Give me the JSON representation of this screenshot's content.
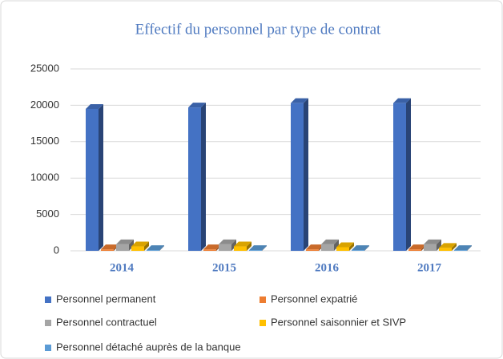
{
  "chart_data": {
    "type": "bar",
    "title": "Effectif du personnel par type de contrat",
    "categories": [
      "2014",
      "2015",
      "2016",
      "2017"
    ],
    "series": [
      {
        "name": "Personnel permanent",
        "color": "#4472c4",
        "values": [
          19500,
          19700,
          20300,
          20300
        ]
      },
      {
        "name": "Personnel expatrié",
        "color": "#ed7d31",
        "values": [
          200,
          200,
          200,
          200
        ]
      },
      {
        "name": "Personnel contractuel",
        "color": "#a5a5a5",
        "values": [
          900,
          900,
          900,
          900
        ]
      },
      {
        "name": "Personnel saisonnier et SIVP",
        "color": "#ffc000",
        "values": [
          600,
          600,
          500,
          400
        ]
      },
      {
        "name": "Personnel détaché auprès de la banque",
        "color": "#5b9bd5",
        "values": [
          100,
          100,
          100,
          100
        ]
      }
    ],
    "ylim": [
      0,
      25000
    ],
    "yticks": [
      0,
      5000,
      10000,
      15000,
      20000,
      25000
    ],
    "grid": true
  }
}
